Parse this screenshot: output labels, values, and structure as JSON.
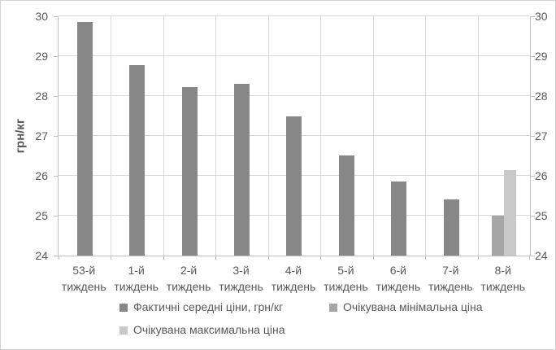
{
  "chart_data": {
    "type": "bar",
    "title": "",
    "xlabel": "",
    "ylabel": "грн/кг",
    "ylim": [
      24,
      30
    ],
    "yticks": [
      24,
      25,
      26,
      27,
      28,
      29,
      30
    ],
    "grid": true,
    "legend_position": "bottom",
    "categories": [
      "53-й тиждень",
      "1-й тиждень",
      "2-й тиждень",
      "3-й тиждень",
      "4-й тиждень",
      "5-й тиждень",
      "6-й тиждень",
      "7-й тиждень",
      "8-й тиждень"
    ],
    "series": [
      {
        "name": "Фактичні середні ціни, грн/кг",
        "color": "#878787",
        "values": [
          29.85,
          28.77,
          28.22,
          28.3,
          27.5,
          26.52,
          25.85,
          25.4,
          null
        ]
      },
      {
        "name": "Очікувана мінімальна ціна",
        "color": "#a6a6a6",
        "values": [
          null,
          null,
          null,
          null,
          null,
          null,
          null,
          null,
          25.0
        ]
      },
      {
        "name": "Очікувана максимальна ціна",
        "color": "#c9c9c9",
        "values": [
          null,
          null,
          null,
          null,
          null,
          null,
          null,
          null,
          26.15
        ]
      }
    ],
    "colors": {
      "gridline": "#d9d9d9",
      "axis_line": "#bfbfbf",
      "text": "#595959",
      "frame_border": "#d3d3d3"
    }
  }
}
